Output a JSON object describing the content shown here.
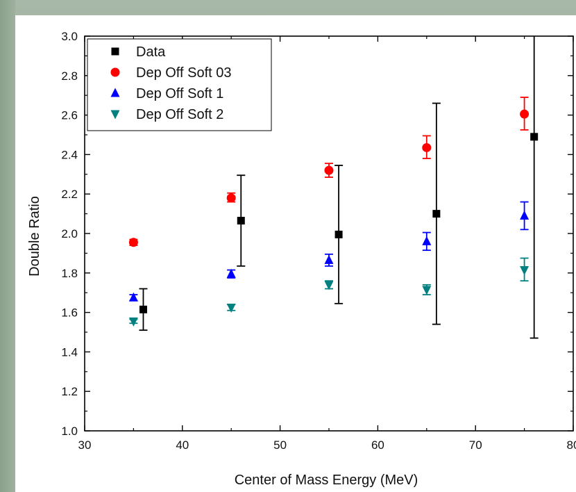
{
  "chart_data": {
    "type": "scatter",
    "xlabel": "Center of Mass Energy (MeV)",
    "ylabel": "Double Ratio",
    "xlim": [
      30,
      80
    ],
    "ylim": [
      1.0,
      3.0
    ],
    "x_ticks": [
      "30",
      "40",
      "50",
      "60",
      "70",
      "80"
    ],
    "y_ticks": [
      "1.0",
      "1.2",
      "1.4",
      "1.6",
      "1.8",
      "2.0",
      "2.2",
      "2.4",
      "2.6",
      "2.8",
      "3.0"
    ],
    "grid": false,
    "legend_position": "top-left",
    "series": [
      {
        "name": "Data",
        "marker": "square",
        "color": "#000000",
        "points": [
          {
            "x": 36,
            "y": 1.615,
            "err_low": 1.51,
            "err_high": 1.72
          },
          {
            "x": 46,
            "y": 2.065,
            "err_low": 1.835,
            "err_high": 2.295
          },
          {
            "x": 56,
            "y": 1.995,
            "err_low": 1.645,
            "err_high": 2.345
          },
          {
            "x": 66,
            "y": 2.1,
            "err_low": 1.54,
            "err_high": 2.66
          },
          {
            "x": 76,
            "y": 2.49,
            "err_low": 1.47,
            "err_high": 3.0
          }
        ]
      },
      {
        "name": "Dep Off Soft 03",
        "marker": "circle",
        "color": "#ff0000",
        "points": [
          {
            "x": 35,
            "y": 1.955,
            "err_low": 1.94,
            "err_high": 1.97
          },
          {
            "x": 45,
            "y": 2.18,
            "err_low": 2.16,
            "err_high": 2.205
          },
          {
            "x": 55,
            "y": 2.32,
            "err_low": 2.285,
            "err_high": 2.355
          },
          {
            "x": 65,
            "y": 2.435,
            "err_low": 2.38,
            "err_high": 2.495
          },
          {
            "x": 75,
            "y": 2.605,
            "err_low": 2.525,
            "err_high": 2.69
          }
        ]
      },
      {
        "name": "Dep Off Soft 1",
        "marker": "triangle-up",
        "color": "#0000ff",
        "points": [
          {
            "x": 35,
            "y": 1.675,
            "err_low": 1.66,
            "err_high": 1.69
          },
          {
            "x": 45,
            "y": 1.795,
            "err_low": 1.775,
            "err_high": 1.815
          },
          {
            "x": 55,
            "y": 1.865,
            "err_low": 1.835,
            "err_high": 1.895
          },
          {
            "x": 65,
            "y": 1.96,
            "err_low": 1.915,
            "err_high": 2.005
          },
          {
            "x": 75,
            "y": 2.09,
            "err_low": 2.02,
            "err_high": 2.16
          }
        ]
      },
      {
        "name": "Dep Off Soft 2",
        "marker": "triangle-down",
        "color": "#008080",
        "points": [
          {
            "x": 35,
            "y": 1.555,
            "err_low": 1.545,
            "err_high": 1.565
          },
          {
            "x": 45,
            "y": 1.625,
            "err_low": 1.61,
            "err_high": 1.64
          },
          {
            "x": 55,
            "y": 1.74,
            "err_low": 1.72,
            "err_high": 1.76
          },
          {
            "x": 65,
            "y": 1.715,
            "err_low": 1.69,
            "err_high": 1.74
          },
          {
            "x": 75,
            "y": 1.815,
            "err_low": 1.76,
            "err_high": 1.875
          }
        ]
      }
    ]
  }
}
